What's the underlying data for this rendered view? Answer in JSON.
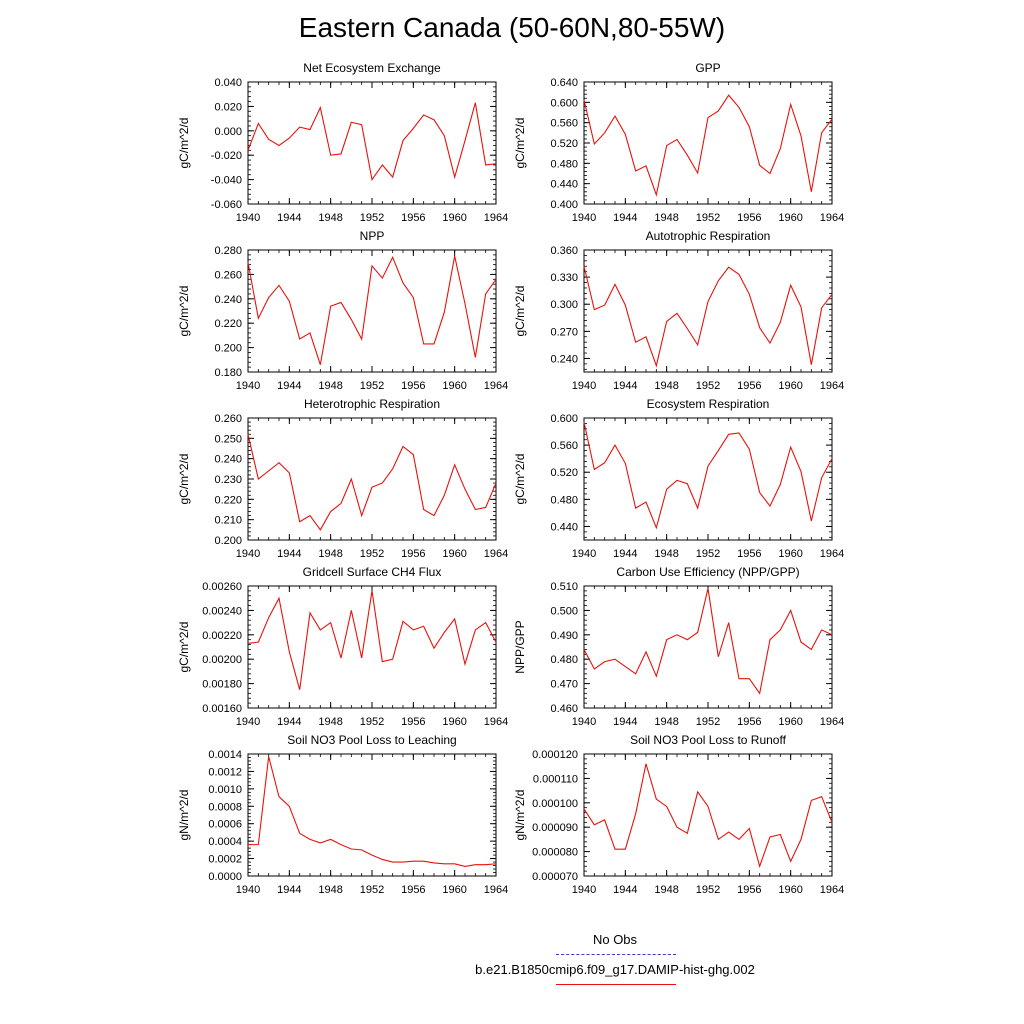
{
  "title": "Eastern Canada (50-60N,80-55W)",
  "colors": {
    "model": "#e8120c",
    "obs": "#3b3bd6"
  },
  "legend": [
    {
      "label": "No Obs",
      "color": "#3b3bd6",
      "style": "dashed"
    },
    {
      "label": "b.e21.B1850cmip6.f09_g17.DAMIP-hist-ghg.002",
      "color": "#e8120c",
      "style": "solid"
    }
  ],
  "chart_data": [
    {
      "type": "line",
      "title": "Net Ecosystem Exchange",
      "ylabel": "gC/m^2/d",
      "xlim": [
        1940,
        1964
      ],
      "xticks": [
        1940,
        1944,
        1948,
        1952,
        1956,
        1960,
        1964
      ],
      "ylim": [
        -0.06,
        0.04
      ],
      "yticks": [
        "-0.060",
        "-0.040",
        "-0.020",
        "0.000",
        "0.020",
        "0.040"
      ],
      "x": [
        1940,
        1941,
        1942,
        1943,
        1944,
        1945,
        1946,
        1947,
        1948,
        1949,
        1950,
        1951,
        1952,
        1953,
        1954,
        1955,
        1956,
        1957,
        1958,
        1959,
        1960,
        1961,
        1962,
        1963,
        1964
      ],
      "series": [
        {
          "name": "b.e21.B1850cmip6.f09_g17.DAMIP-hist-ghg.002",
          "values": [
            -0.016,
            0.006,
            -0.007,
            -0.012,
            -0.006,
            0.003,
            0.001,
            0.019,
            -0.02,
            -0.019,
            0.007,
            0.005,
            -0.04,
            -0.028,
            -0.038,
            -0.008,
            0.002,
            0.013,
            0.009,
            -0.004,
            -0.038,
            -0.008,
            0.023,
            -0.028,
            -0.027
          ]
        }
      ]
    },
    {
      "type": "line",
      "title": "GPP",
      "ylabel": "gC/m^2/d",
      "xlim": [
        1940,
        1964
      ],
      "xticks": [
        1940,
        1944,
        1948,
        1952,
        1956,
        1960,
        1964
      ],
      "ylim": [
        0.4,
        0.64
      ],
      "yticks": [
        "0.400",
        "0.440",
        "0.480",
        "0.520",
        "0.560",
        "0.600",
        "0.640"
      ],
      "x": [
        1940,
        1941,
        1942,
        1943,
        1944,
        1945,
        1946,
        1947,
        1948,
        1949,
        1950,
        1951,
        1952,
        1953,
        1954,
        1955,
        1956,
        1957,
        1958,
        1959,
        1960,
        1961,
        1962,
        1963,
        1964
      ],
      "series": [
        {
          "name": "b.e21.B1850cmip6.f09_g17.DAMIP-hist-ghg.002",
          "values": [
            0.605,
            0.518,
            0.54,
            0.573,
            0.537,
            0.465,
            0.475,
            0.418,
            0.515,
            0.527,
            0.496,
            0.461,
            0.57,
            0.583,
            0.614,
            0.59,
            0.552,
            0.476,
            0.46,
            0.509,
            0.596,
            0.534,
            0.424,
            0.54,
            0.567
          ]
        }
      ]
    },
    {
      "type": "line",
      "title": "NPP",
      "ylabel": "gC/m^2/d",
      "xlim": [
        1940,
        1964
      ],
      "xticks": [
        1940,
        1944,
        1948,
        1952,
        1956,
        1960,
        1964
      ],
      "ylim": [
        0.18,
        0.28
      ],
      "yticks": [
        "0.180",
        "0.200",
        "0.220",
        "0.240",
        "0.260",
        "0.280"
      ],
      "x": [
        1940,
        1941,
        1942,
        1943,
        1944,
        1945,
        1946,
        1947,
        1948,
        1949,
        1950,
        1951,
        1952,
        1953,
        1954,
        1955,
        1956,
        1957,
        1958,
        1959,
        1960,
        1961,
        1962,
        1963,
        1964
      ],
      "series": [
        {
          "name": "b.e21.B1850cmip6.f09_g17.DAMIP-hist-ghg.002",
          "values": [
            0.27,
            0.224,
            0.241,
            0.251,
            0.238,
            0.207,
            0.212,
            0.186,
            0.234,
            0.237,
            0.223,
            0.207,
            0.267,
            0.257,
            0.274,
            0.253,
            0.241,
            0.203,
            0.203,
            0.229,
            0.275,
            0.236,
            0.192,
            0.244,
            0.256
          ]
        }
      ]
    },
    {
      "type": "line",
      "title": "Autotrophic Respiration",
      "ylabel": "gC/m^2/d",
      "xlim": [
        1940,
        1964
      ],
      "xticks": [
        1940,
        1944,
        1948,
        1952,
        1956,
        1960,
        1964
      ],
      "ylim": [
        0.225,
        0.36
      ],
      "yticks": [
        "0.240",
        "0.270",
        "0.300",
        "0.330",
        "0.360"
      ],
      "x": [
        1940,
        1941,
        1942,
        1943,
        1944,
        1945,
        1946,
        1947,
        1948,
        1949,
        1950,
        1951,
        1952,
        1953,
        1954,
        1955,
        1956,
        1957,
        1958,
        1959,
        1960,
        1961,
        1962,
        1963,
        1964
      ],
      "series": [
        {
          "name": "b.e21.B1850cmip6.f09_g17.DAMIP-hist-ghg.002",
          "values": [
            0.342,
            0.294,
            0.299,
            0.322,
            0.299,
            0.258,
            0.264,
            0.232,
            0.281,
            0.29,
            0.273,
            0.255,
            0.303,
            0.326,
            0.341,
            0.333,
            0.311,
            0.274,
            0.257,
            0.28,
            0.321,
            0.297,
            0.233,
            0.296,
            0.311
          ]
        }
      ]
    },
    {
      "type": "line",
      "title": "Heterotrophic Respiration",
      "ylabel": "gC/m^2/d",
      "xlim": [
        1940,
        1964
      ],
      "xticks": [
        1940,
        1944,
        1948,
        1952,
        1956,
        1960,
        1964
      ],
      "ylim": [
        0.2,
        0.26
      ],
      "yticks": [
        "0.200",
        "0.210",
        "0.220",
        "0.230",
        "0.240",
        "0.250",
        "0.260"
      ],
      "x": [
        1940,
        1941,
        1942,
        1943,
        1944,
        1945,
        1946,
        1947,
        1948,
        1949,
        1950,
        1951,
        1952,
        1953,
        1954,
        1955,
        1956,
        1957,
        1958,
        1959,
        1960,
        1961,
        1962,
        1963,
        1964
      ],
      "series": [
        {
          "name": "b.e21.B1850cmip6.f09_g17.DAMIP-hist-ghg.002",
          "values": [
            0.252,
            0.23,
            0.234,
            0.238,
            0.233,
            0.209,
            0.212,
            0.205,
            0.214,
            0.218,
            0.23,
            0.212,
            0.226,
            0.228,
            0.235,
            0.246,
            0.242,
            0.215,
            0.212,
            0.222,
            0.237,
            0.225,
            0.215,
            0.216,
            0.228
          ]
        }
      ]
    },
    {
      "type": "line",
      "title": "Ecosystem Respiration",
      "ylabel": "gC/m^2/d",
      "xlim": [
        1940,
        1964
      ],
      "xticks": [
        1940,
        1944,
        1948,
        1952,
        1956,
        1960,
        1964
      ],
      "ylim": [
        0.42,
        0.6
      ],
      "yticks": [
        "0.440",
        "0.480",
        "0.520",
        "0.560",
        "0.600"
      ],
      "x": [
        1940,
        1941,
        1942,
        1943,
        1944,
        1945,
        1946,
        1947,
        1948,
        1949,
        1950,
        1951,
        1952,
        1953,
        1954,
        1955,
        1956,
        1957,
        1958,
        1959,
        1960,
        1961,
        1962,
        1963,
        1964
      ],
      "series": [
        {
          "name": "b.e21.B1850cmip6.f09_g17.DAMIP-hist-ghg.002",
          "values": [
            0.594,
            0.524,
            0.534,
            0.56,
            0.533,
            0.467,
            0.476,
            0.438,
            0.495,
            0.508,
            0.503,
            0.467,
            0.529,
            0.552,
            0.576,
            0.578,
            0.554,
            0.49,
            0.47,
            0.502,
            0.557,
            0.521,
            0.448,
            0.512,
            0.54
          ]
        }
      ]
    },
    {
      "type": "line",
      "title": "Gridcell Surface CH4 Flux",
      "ylabel": "gC/m^2/d",
      "xlim": [
        1940,
        1964
      ],
      "xticks": [
        1940,
        1944,
        1948,
        1952,
        1956,
        1960,
        1964
      ],
      "ylim": [
        0.0016,
        0.0026
      ],
      "yticks": [
        "0.00160",
        "0.00180",
        "0.00200",
        "0.00220",
        "0.00240",
        "0.00260"
      ],
      "x": [
        1940,
        1941,
        1942,
        1943,
        1944,
        1945,
        1946,
        1947,
        1948,
        1949,
        1950,
        1951,
        1952,
        1953,
        1954,
        1955,
        1956,
        1957,
        1958,
        1959,
        1960,
        1961,
        1962,
        1963,
        1964
      ],
      "series": [
        {
          "name": "b.e21.B1850cmip6.f09_g17.DAMIP-hist-ghg.002",
          "values": [
            0.00213,
            0.00214,
            0.00234,
            0.0025,
            0.00206,
            0.00175,
            0.00238,
            0.00224,
            0.0023,
            0.00201,
            0.0024,
            0.00201,
            0.00256,
            0.00198,
            0.002,
            0.00231,
            0.00224,
            0.00227,
            0.00209,
            0.00222,
            0.00233,
            0.00196,
            0.00224,
            0.0023,
            0.00214
          ]
        }
      ]
    },
    {
      "type": "line",
      "title": "Carbon Use Efficiency (NPP/GPP)",
      "ylabel": "NPP/GPP",
      "xlim": [
        1940,
        1964
      ],
      "xticks": [
        1940,
        1944,
        1948,
        1952,
        1956,
        1960,
        1964
      ],
      "ylim": [
        0.46,
        0.51
      ],
      "yticks": [
        "0.460",
        "0.470",
        "0.480",
        "0.490",
        "0.500",
        "0.510"
      ],
      "x": [
        1940,
        1941,
        1942,
        1943,
        1944,
        1945,
        1946,
        1947,
        1948,
        1949,
        1950,
        1951,
        1952,
        1953,
        1954,
        1955,
        1956,
        1957,
        1958,
        1959,
        1960,
        1961,
        1962,
        1963,
        1964
      ],
      "series": [
        {
          "name": "b.e21.B1850cmip6.f09_g17.DAMIP-hist-ghg.002",
          "values": [
            0.484,
            0.476,
            0.479,
            0.48,
            0.477,
            0.474,
            0.483,
            0.473,
            0.488,
            0.49,
            0.488,
            0.491,
            0.509,
            0.481,
            0.495,
            0.472,
            0.472,
            0.466,
            0.488,
            0.492,
            0.5,
            0.487,
            0.484,
            0.492,
            0.49
          ]
        }
      ]
    },
    {
      "type": "line",
      "title": "Soil NO3 Pool Loss to Leaching",
      "ylabel": "gN/m^2/d",
      "xlim": [
        1940,
        1964
      ],
      "xticks": [
        1940,
        1944,
        1948,
        1952,
        1956,
        1960,
        1964
      ],
      "ylim": [
        0,
        0.0014
      ],
      "yticks": [
        "0.0000",
        "0.0002",
        "0.0004",
        "0.0006",
        "0.0008",
        "0.0010",
        "0.0012",
        "0.0014"
      ],
      "x": [
        1940,
        1941,
        1942,
        1943,
        1944,
        1945,
        1946,
        1947,
        1948,
        1949,
        1950,
        1951,
        1952,
        1953,
        1954,
        1955,
        1956,
        1957,
        1958,
        1959,
        1960,
        1961,
        1962,
        1963,
        1964
      ],
      "series": [
        {
          "name": "b.e21.B1850cmip6.f09_g17.DAMIP-hist-ghg.002",
          "values": [
            0.00036,
            0.00036,
            0.00137,
            0.00091,
            0.0008,
            0.00049,
            0.00042,
            0.00038,
            0.00042,
            0.00036,
            0.00031,
            0.0003,
            0.00024,
            0.00019,
            0.00016,
            0.00016,
            0.00017,
            0.00017,
            0.00015,
            0.00014,
            0.00014,
            0.00011,
            0.00013,
            0.00013,
            0.00014
          ]
        }
      ]
    },
    {
      "type": "line",
      "title": "Soil NO3 Pool Loss to Runoff",
      "ylabel": "gN/m^2/d",
      "xlim": [
        1940,
        1964
      ],
      "xticks": [
        1940,
        1944,
        1948,
        1952,
        1956,
        1960,
        1964
      ],
      "ylim": [
        7e-05,
        0.00012
      ],
      "yticks": [
        "0.000070",
        "0.000080",
        "0.000090",
        "0.000100",
        "0.000110",
        "0.000120"
      ],
      "x": [
        1940,
        1941,
        1942,
        1943,
        1944,
        1945,
        1946,
        1947,
        1948,
        1949,
        1950,
        1951,
        1952,
        1953,
        1954,
        1955,
        1956,
        1957,
        1958,
        1959,
        1960,
        1961,
        1962,
        1963,
        1964
      ],
      "series": [
        {
          "name": "b.e21.B1850cmip6.f09_g17.DAMIP-hist-ghg.002",
          "values": [
            9.75e-05,
            9.1e-05,
            9.3e-05,
            8.1e-05,
            8.1e-05,
            9.55e-05,
            0.000116,
            0.0001015,
            9.85e-05,
            9e-05,
            8.75e-05,
            0.0001045,
            9.85e-05,
            8.5e-05,
            8.8e-05,
            8.5e-05,
            8.95e-05,
            7.4e-05,
            8.6e-05,
            8.7e-05,
            7.6e-05,
            8.5e-05,
            0.000101,
            0.0001025,
            9.2e-05
          ]
        }
      ]
    }
  ]
}
